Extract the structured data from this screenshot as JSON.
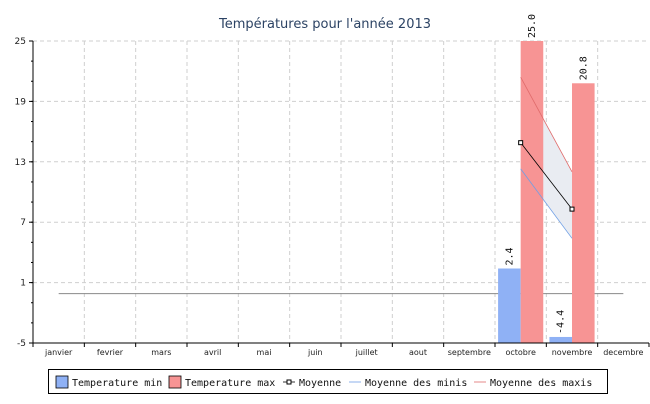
{
  "chart_data": {
    "type": "bar",
    "title": "Températures pour l'année 2013",
    "xlabel": "",
    "ylabel": "",
    "categories": [
      "janvier",
      "fevrier",
      "mars",
      "avril",
      "mai",
      "juin",
      "juillet",
      "aout",
      "septembre",
      "octobre",
      "novembre",
      "decembre"
    ],
    "ylim": [
      -5,
      25
    ],
    "yticks": [
      -5,
      1,
      7,
      13,
      19,
      25
    ],
    "grid": true,
    "legend_position": "bottom",
    "series": [
      {
        "name": "Temperature min",
        "kind": "bar",
        "color": "#8fb1f5",
        "values": [
          null,
          null,
          null,
          null,
          null,
          null,
          null,
          null,
          null,
          2.4,
          -4.4,
          null
        ],
        "labels": [
          null,
          null,
          null,
          null,
          null,
          null,
          null,
          null,
          null,
          "2.4",
          "-4.4",
          null
        ]
      },
      {
        "name": "Temperature max",
        "kind": "bar",
        "color": "#f79494",
        "values": [
          null,
          null,
          null,
          null,
          null,
          null,
          null,
          null,
          null,
          25.0,
          20.8,
          null
        ],
        "labels": [
          null,
          null,
          null,
          null,
          null,
          null,
          null,
          null,
          null,
          "25.0",
          "20.8",
          null
        ]
      },
      {
        "name": "Moyenne",
        "kind": "line-marker",
        "color": "#000000",
        "values": [
          null,
          null,
          null,
          null,
          null,
          null,
          null,
          null,
          null,
          14.9,
          8.3,
          null
        ]
      },
      {
        "name": "Moyenne des minis",
        "kind": "line",
        "color": "#6f9fe6",
        "values": [
          null,
          null,
          null,
          null,
          null,
          null,
          null,
          null,
          null,
          12.3,
          5.4,
          null
        ]
      },
      {
        "name": "Moyenne des maxis",
        "kind": "line",
        "color": "#e06a6a",
        "values": [
          null,
          null,
          null,
          null,
          null,
          null,
          null,
          null,
          null,
          21.4,
          12.0,
          null
        ]
      }
    ],
    "reference_line": {
      "value": -0.1,
      "color": "#8a8a8a"
    },
    "band_fill_color": "#e9ecf2"
  }
}
